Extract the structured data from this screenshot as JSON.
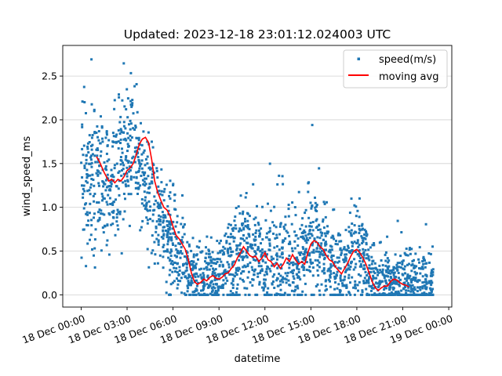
{
  "chart_data": {
    "type": "scatter",
    "title": "Updated: 2023-12-18 23:01:12.024003 UTC",
    "xlabel": "datetime",
    "ylabel": "wind_speed_ms",
    "x_unit": "hours on 18 Dec 2023",
    "xlim": [
      -1.2,
      24.2
    ],
    "ylim": [
      -0.14,
      2.85
    ],
    "grid": "horizontal",
    "legend_position": "top-right",
    "x_ticks": [
      {
        "value": 0,
        "label": "18 Dec 00:00"
      },
      {
        "value": 3,
        "label": "18 Dec 03:00"
      },
      {
        "value": 6,
        "label": "18 Dec 06:00"
      },
      {
        "value": 9,
        "label": "18 Dec 09:00"
      },
      {
        "value": 12,
        "label": "18 Dec 12:00"
      },
      {
        "value": 15,
        "label": "18 Dec 15:00"
      },
      {
        "value": 18,
        "label": "18 Dec 18:00"
      },
      {
        "value": 21,
        "label": "18 Dec 21:00"
      },
      {
        "value": 24,
        "label": "19 Dec 00:00"
      }
    ],
    "y_ticks": [
      {
        "value": 0.0,
        "label": "0.0"
      },
      {
        "value": 0.5,
        "label": "0.5"
      },
      {
        "value": 1.0,
        "label": "1.0"
      },
      {
        "value": 1.5,
        "label": "1.5"
      },
      {
        "value": 2.0,
        "label": "2.0"
      },
      {
        "value": 2.5,
        "label": "2.5"
      }
    ],
    "series": [
      {
        "name": "speed(m/s)",
        "kind": "scatter",
        "color": "#1f77b4",
        "approx_points": 2300,
        "x_range": [
          0,
          23
        ],
        "level_profile": [
          [
            0.0,
            1.25,
            0.4
          ],
          [
            0.5,
            1.35,
            0.42
          ],
          [
            1.0,
            1.3,
            0.45
          ],
          [
            1.5,
            1.25,
            0.4
          ],
          [
            2.0,
            1.3,
            0.4
          ],
          [
            2.5,
            1.4,
            0.42
          ],
          [
            3.0,
            1.65,
            0.45
          ],
          [
            3.5,
            1.75,
            0.4
          ],
          [
            4.0,
            1.3,
            0.35
          ],
          [
            4.5,
            1.05,
            0.3
          ],
          [
            5.0,
            0.95,
            0.28
          ],
          [
            5.5,
            0.75,
            0.28
          ],
          [
            6.0,
            0.6,
            0.28
          ],
          [
            6.5,
            0.45,
            0.25
          ],
          [
            7.0,
            0.3,
            0.22
          ],
          [
            7.5,
            0.18,
            0.18
          ],
          [
            8.0,
            0.15,
            0.18
          ],
          [
            8.5,
            0.18,
            0.2
          ],
          [
            9.0,
            0.22,
            0.22
          ],
          [
            9.5,
            0.28,
            0.25
          ],
          [
            10.0,
            0.35,
            0.28
          ],
          [
            10.5,
            0.5,
            0.3
          ],
          [
            11.0,
            0.45,
            0.3
          ],
          [
            11.5,
            0.42,
            0.3
          ],
          [
            12.0,
            0.4,
            0.3
          ],
          [
            12.5,
            0.38,
            0.3
          ],
          [
            13.0,
            0.35,
            0.3
          ],
          [
            13.5,
            0.4,
            0.32
          ],
          [
            14.0,
            0.35,
            0.3
          ],
          [
            14.5,
            0.45,
            0.32
          ],
          [
            15.0,
            0.6,
            0.32
          ],
          [
            15.5,
            0.55,
            0.3
          ],
          [
            16.0,
            0.45,
            0.28
          ],
          [
            16.5,
            0.35,
            0.28
          ],
          [
            17.0,
            0.28,
            0.25
          ],
          [
            17.5,
            0.4,
            0.28
          ],
          [
            18.0,
            0.5,
            0.3
          ],
          [
            18.5,
            0.35,
            0.28
          ],
          [
            19.0,
            0.2,
            0.22
          ],
          [
            19.5,
            0.1,
            0.18
          ],
          [
            20.0,
            0.12,
            0.18
          ],
          [
            20.5,
            0.15,
            0.2
          ],
          [
            21.0,
            0.18,
            0.2
          ],
          [
            22.0,
            0.12,
            0.18
          ],
          [
            23.0,
            0.1,
            0.18
          ]
        ]
      },
      {
        "name": "moving avg",
        "kind": "line",
        "color": "#ff0000",
        "points": [
          [
            1.0,
            1.58
          ],
          [
            1.2,
            1.52
          ],
          [
            1.5,
            1.4
          ],
          [
            1.8,
            1.3
          ],
          [
            2.0,
            1.32
          ],
          [
            2.2,
            1.28
          ],
          [
            2.4,
            1.32
          ],
          [
            2.6,
            1.3
          ],
          [
            2.8,
            1.35
          ],
          [
            3.0,
            1.42
          ],
          [
            3.2,
            1.45
          ],
          [
            3.4,
            1.5
          ],
          [
            3.6,
            1.6
          ],
          [
            3.8,
            1.72
          ],
          [
            4.0,
            1.78
          ],
          [
            4.2,
            1.8
          ],
          [
            4.4,
            1.74
          ],
          [
            4.6,
            1.55
          ],
          [
            4.8,
            1.3
          ],
          [
            5.0,
            1.17
          ],
          [
            5.2,
            1.08
          ],
          [
            5.4,
            1.0
          ],
          [
            5.6,
            0.97
          ],
          [
            5.8,
            0.9
          ],
          [
            6.0,
            0.78
          ],
          [
            6.2,
            0.68
          ],
          [
            6.4,
            0.64
          ],
          [
            6.6,
            0.58
          ],
          [
            6.8,
            0.52
          ],
          [
            7.0,
            0.4
          ],
          [
            7.2,
            0.25
          ],
          [
            7.4,
            0.15
          ],
          [
            7.6,
            0.12
          ],
          [
            7.8,
            0.14
          ],
          [
            8.0,
            0.18
          ],
          [
            8.2,
            0.16
          ],
          [
            8.4,
            0.2
          ],
          [
            8.6,
            0.22
          ],
          [
            8.8,
            0.19
          ],
          [
            9.0,
            0.18
          ],
          [
            9.2,
            0.2
          ],
          [
            9.4,
            0.24
          ],
          [
            9.6,
            0.25
          ],
          [
            9.8,
            0.3
          ],
          [
            10.0,
            0.34
          ],
          [
            10.2,
            0.42
          ],
          [
            10.4,
            0.48
          ],
          [
            10.6,
            0.55
          ],
          [
            10.8,
            0.5
          ],
          [
            11.0,
            0.45
          ],
          [
            11.2,
            0.43
          ],
          [
            11.4,
            0.44
          ],
          [
            11.6,
            0.38
          ],
          [
            11.8,
            0.42
          ],
          [
            12.0,
            0.48
          ],
          [
            12.2,
            0.4
          ],
          [
            12.4,
            0.38
          ],
          [
            12.6,
            0.32
          ],
          [
            12.8,
            0.36
          ],
          [
            13.0,
            0.3
          ],
          [
            13.2,
            0.35
          ],
          [
            13.4,
            0.42
          ],
          [
            13.6,
            0.38
          ],
          [
            13.8,
            0.46
          ],
          [
            14.0,
            0.4
          ],
          [
            14.2,
            0.35
          ],
          [
            14.4,
            0.38
          ],
          [
            14.6,
            0.35
          ],
          [
            14.8,
            0.48
          ],
          [
            15.0,
            0.58
          ],
          [
            15.2,
            0.62
          ],
          [
            15.4,
            0.6
          ],
          [
            15.6,
            0.55
          ],
          [
            15.8,
            0.52
          ],
          [
            16.0,
            0.45
          ],
          [
            16.2,
            0.4
          ],
          [
            16.4,
            0.38
          ],
          [
            16.6,
            0.32
          ],
          [
            16.8,
            0.28
          ],
          [
            17.0,
            0.24
          ],
          [
            17.2,
            0.3
          ],
          [
            17.4,
            0.36
          ],
          [
            17.6,
            0.44
          ],
          [
            17.8,
            0.5
          ],
          [
            18.0,
            0.52
          ],
          [
            18.2,
            0.48
          ],
          [
            18.4,
            0.42
          ],
          [
            18.6,
            0.35
          ],
          [
            18.8,
            0.25
          ],
          [
            19.0,
            0.15
          ],
          [
            19.2,
            0.08
          ],
          [
            19.4,
            0.05
          ],
          [
            19.6,
            0.08
          ],
          [
            19.8,
            0.1
          ],
          [
            20.0,
            0.1
          ],
          [
            20.2,
            0.15
          ],
          [
            20.4,
            0.18
          ],
          [
            20.6,
            0.17
          ],
          [
            20.8,
            0.14
          ],
          [
            21.0,
            0.12
          ],
          [
            21.2,
            0.11
          ],
          [
            21.4,
            0.09
          ]
        ]
      }
    ]
  }
}
